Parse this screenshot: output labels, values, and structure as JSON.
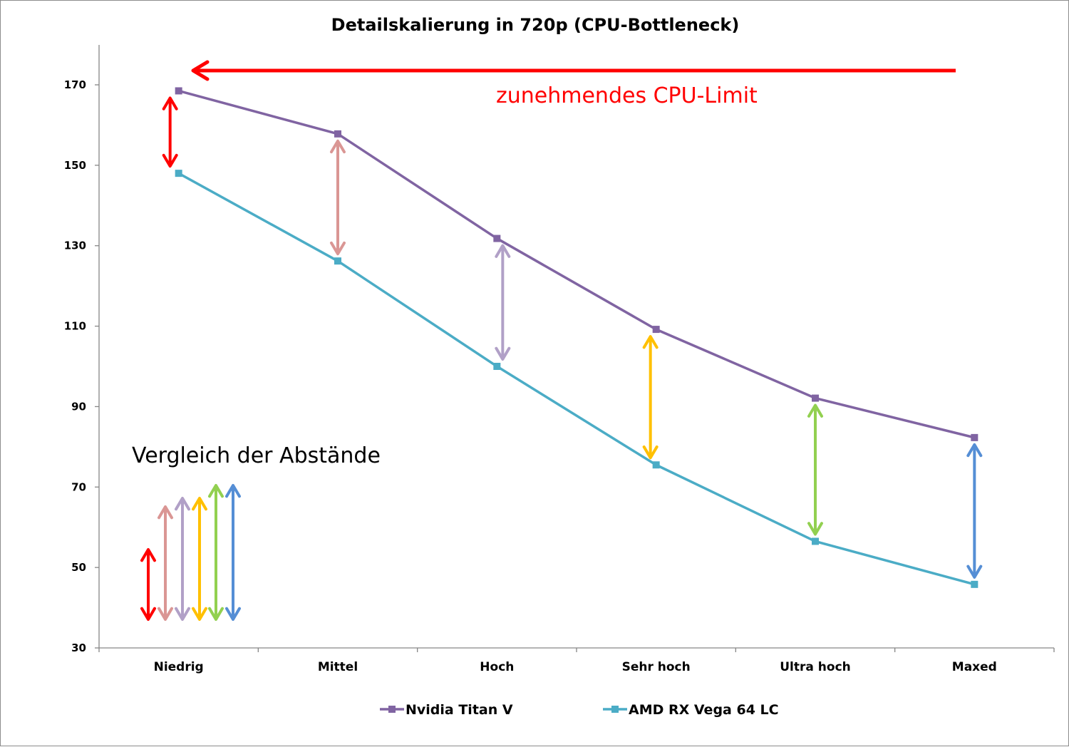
{
  "chart_data": {
    "type": "line",
    "title": "Detailskalierung in 720p (CPU-Bottleneck)",
    "xlabel": "",
    "ylabel": "",
    "categories": [
      "Niedrig",
      "Mittel",
      "Hoch",
      "Sehr hoch",
      "Ultra hoch",
      "Maxed"
    ],
    "yticks": [
      30,
      50,
      70,
      90,
      110,
      130,
      150,
      170
    ],
    "ylim": [
      30,
      180
    ],
    "grid": false,
    "legend_position": "bottom",
    "series": [
      {
        "name": "Nvidia Titan V",
        "color": "#8064a2",
        "values": [
          168.5,
          157.8,
          131.8,
          109.2,
          92.1,
          82.3
        ]
      },
      {
        "name": "AMD RX Vega 64 LC",
        "color": "#4bacc6",
        "values": [
          148.0,
          126.2,
          100.0,
          75.5,
          56.5,
          45.8
        ]
      }
    ],
    "annotations": {
      "cpu_limit": {
        "text": "zunehmendes CPU-Limit",
        "color": "#ff0000"
      },
      "comparison": {
        "text": "Vergleich der Abstände"
      },
      "gap_colors": [
        "#ff0000",
        "#da9694",
        "#b1a0c7",
        "#ffc000",
        "#92d050",
        "#558ed5"
      ]
    }
  }
}
